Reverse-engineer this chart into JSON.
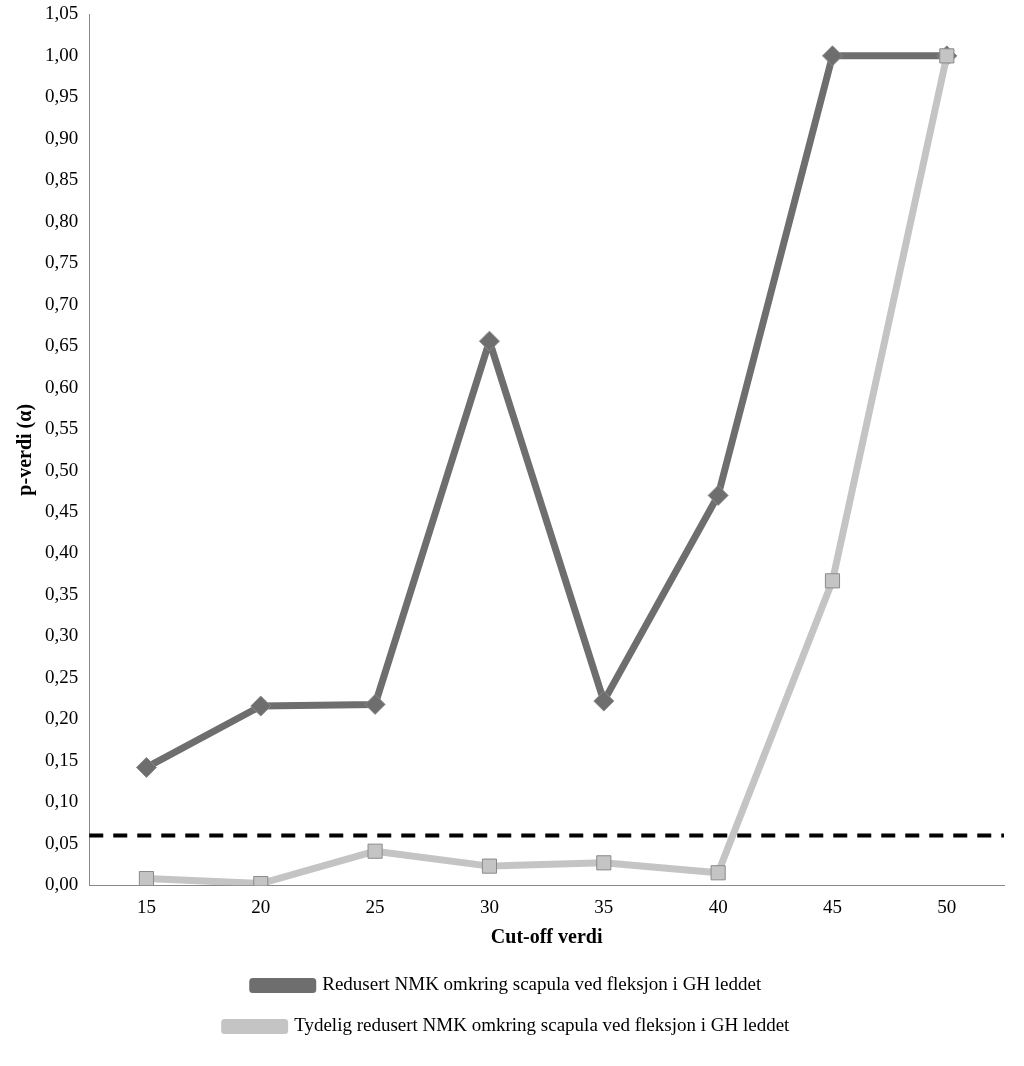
{
  "chart_data": {
    "type": "line",
    "xlabel": "Cut-off verdi",
    "ylabel": "p-verdi (α)",
    "categories": [
      "15",
      "20",
      "25",
      "30",
      "35",
      "40",
      "45",
      "50"
    ],
    "series": [
      {
        "name": "Redusert NMK omkring scapula ved fleksjon i GH leddet",
        "color": "#6e6e6e",
        "marker": "diamond",
        "values": [
          0.142,
          0.216,
          0.218,
          0.656,
          0.222,
          0.47,
          1.0,
          1.0
        ]
      },
      {
        "name": "Tydelig redusert NMK omkring scapula ved fleksjon i GH leddet",
        "color": "#c4c4c4",
        "marker": "square",
        "values": [
          0.008,
          0.002,
          0.041,
          0.023,
          0.027,
          0.015,
          0.367,
          1.0
        ]
      }
    ],
    "ylim": [
      0,
      1.05
    ],
    "yticks": [
      {
        "value": 0,
        "label": "0,00"
      },
      {
        "value": 0.05,
        "label": "0,05"
      },
      {
        "value": 0.1,
        "label": "0,10"
      },
      {
        "value": 0.15,
        "label": "0,15"
      },
      {
        "value": 0.2,
        "label": "0,20"
      },
      {
        "value": 0.25,
        "label": "0,25"
      },
      {
        "value": 0.3,
        "label": "0,30"
      },
      {
        "value": 0.35,
        "label": "0,35"
      },
      {
        "value": 0.4,
        "label": "0,40"
      },
      {
        "value": 0.45,
        "label": "0,45"
      },
      {
        "value": 0.5,
        "label": "0,50"
      },
      {
        "value": 0.55,
        "label": "0,55"
      },
      {
        "value": 0.6,
        "label": "0,60"
      },
      {
        "value": 0.65,
        "label": "0,65"
      },
      {
        "value": 0.7,
        "label": "0,70"
      },
      {
        "value": 0.75,
        "label": "0,75"
      },
      {
        "value": 0.8,
        "label": "0,80"
      },
      {
        "value": 0.85,
        "label": "0,85"
      },
      {
        "value": 0.9,
        "label": "0,90"
      },
      {
        "value": 0.95,
        "label": "0,95"
      },
      {
        "value": 1.0,
        "label": "1,00"
      },
      {
        "value": 1.05,
        "label": "1,05"
      }
    ],
    "ref_lines": [
      {
        "axis": "y",
        "value": 0.06,
        "color": "#000000",
        "line_style": "dashed"
      }
    ],
    "grid": false,
    "legend": "bottom",
    "line_style": "solid"
  }
}
